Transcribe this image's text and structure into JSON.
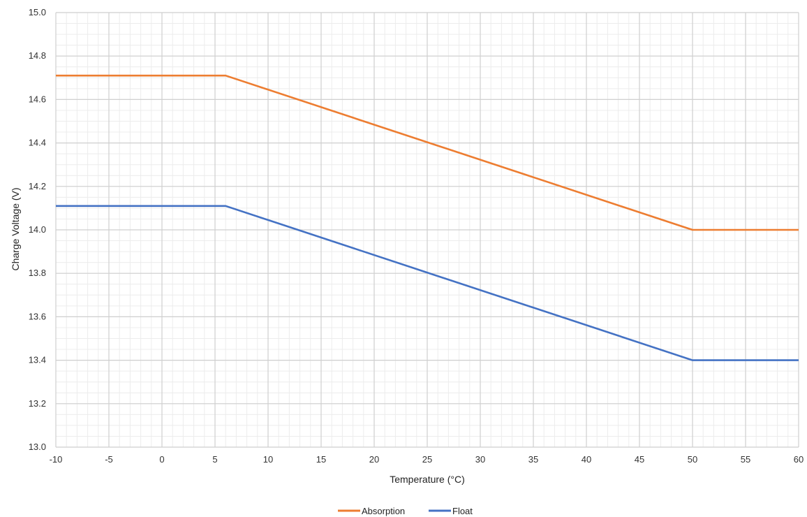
{
  "chart_data": {
    "type": "line",
    "xlabel": "Temperature (°C)",
    "ylabel": "Charge Voltage (V)",
    "xlim": [
      -10,
      60
    ],
    "ylim": [
      13.0,
      15.0
    ],
    "x_ticks": [
      -10,
      -5,
      0,
      5,
      10,
      15,
      20,
      25,
      30,
      35,
      40,
      45,
      50,
      55,
      60
    ],
    "y_ticks": [
      13.0,
      13.2,
      13.4,
      13.6,
      13.8,
      14.0,
      14.2,
      14.4,
      14.6,
      14.8,
      15.0
    ],
    "x_tick_labels": [
      "-10",
      "-5",
      "0",
      "5",
      "10",
      "15",
      "20",
      "25",
      "30",
      "35",
      "40",
      "45",
      "50",
      "55",
      "60"
    ],
    "y_tick_labels": [
      "13.0",
      "13.2",
      "13.4",
      "13.6",
      "13.8",
      "14.0",
      "14.2",
      "14.4",
      "14.6",
      "14.8",
      "15.0"
    ],
    "grid": true,
    "minor_grid": true,
    "legend_position": "bottom",
    "series": [
      {
        "name": "Absorption",
        "color": "#ED7D31",
        "points": [
          [
            -10,
            14.71
          ],
          [
            6,
            14.71
          ],
          [
            50,
            14.0
          ],
          [
            60,
            14.0
          ]
        ]
      },
      {
        "name": "Float",
        "color": "#4472C4",
        "points": [
          [
            -10,
            14.11
          ],
          [
            6,
            14.11
          ],
          [
            50,
            13.4
          ],
          [
            60,
            13.4
          ]
        ]
      }
    ]
  }
}
